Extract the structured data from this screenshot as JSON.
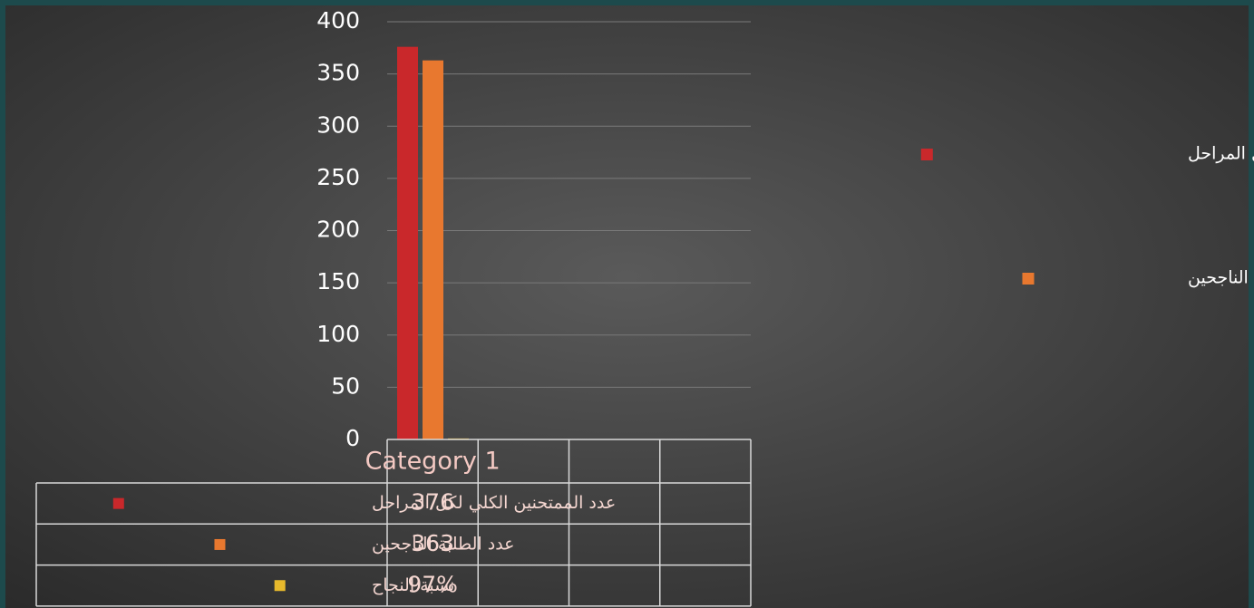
{
  "chart_data": {
    "type": "bar",
    "categories": [
      "Category 1",
      null,
      null,
      null
    ],
    "series": [
      {
        "name": "عدد الممتحنين الكلي لكل المراحل",
        "color": "#c9282b",
        "values": [
          376,
          null,
          null,
          null
        ]
      },
      {
        "name": "عدد الطلبة الناجحين",
        "color": "#e8782f",
        "values": [
          363,
          null,
          null,
          null
        ]
      },
      {
        "name": "نسبة النجاح",
        "color": "#e7b92c",
        "values": [
          0.97,
          null,
          null,
          null
        ],
        "value_labels": [
          "97%",
          null,
          null,
          null
        ],
        "legend": false
      }
    ],
    "ylim": [
      0,
      400
    ],
    "yticks": [
      0,
      50,
      100,
      150,
      200,
      250,
      300,
      350,
      400
    ],
    "grid": true,
    "data_table": true
  }
}
